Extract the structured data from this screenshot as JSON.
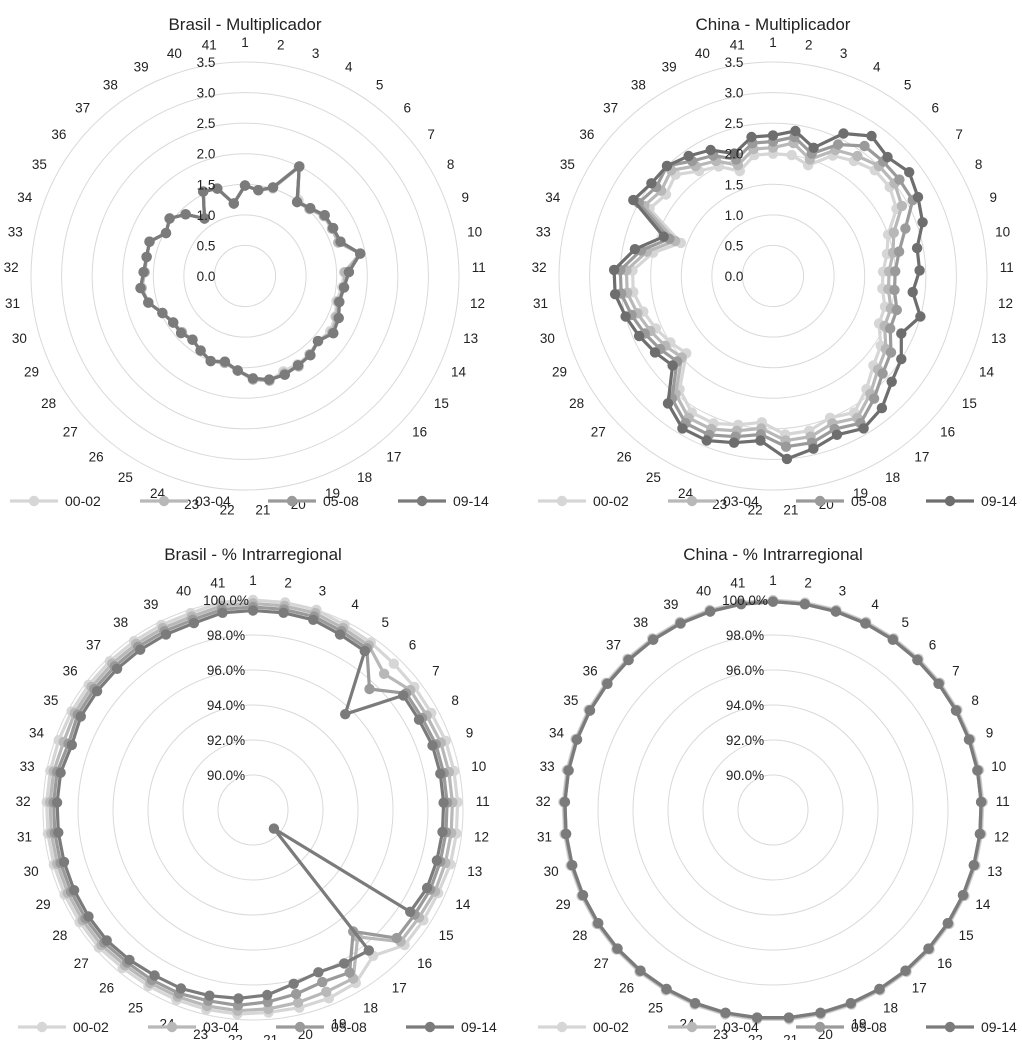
{
  "chart_data": [
    {
      "type": "radar",
      "title": "Brasil - Multiplicador",
      "categories": [
        "1",
        "2",
        "3",
        "4",
        "5",
        "6",
        "7",
        "8",
        "9",
        "10",
        "11",
        "12",
        "13",
        "14",
        "15",
        "16",
        "17",
        "18",
        "19",
        "20",
        "21",
        "22",
        "23",
        "24",
        "25",
        "26",
        "27",
        "28",
        "29",
        "30",
        "31",
        "32",
        "33",
        "34",
        "35",
        "36",
        "37",
        "38",
        "39",
        "40",
        "41"
      ],
      "ticks": [
        "0.0",
        "0.5",
        "1.0",
        "1.5",
        "2.0",
        "2.5",
        "3.0",
        "3.5"
      ],
      "rmin": 0,
      "rmax": 3.5,
      "rings": 7,
      "series": [
        {
          "name": "00-02",
          "color": "#d6d6d6",
          "values": [
            1.48,
            1.42,
            1.5,
            1.98,
            1.52,
            1.52,
            1.62,
            1.62,
            1.65,
            1.92,
            1.62,
            1.6,
            1.55,
            1.62,
            1.66,
            1.6,
            1.66,
            1.68,
            1.68,
            1.76,
            1.7,
            1.55,
            1.46,
            1.5,
            1.42,
            1.35,
            1.38,
            1.4,
            1.48,
            1.64,
            1.7,
            1.64,
            1.64,
            1.66,
            1.47,
            1.55,
            1.4,
            1.15,
            1.54,
            1.5,
            1.2
          ]
        },
        {
          "name": "03-04",
          "color": "#b8b8b8",
          "values": [
            1.48,
            1.42,
            1.52,
            2.0,
            1.48,
            1.52,
            1.62,
            1.62,
            1.62,
            1.92,
            1.64,
            1.63,
            1.58,
            1.64,
            1.7,
            1.6,
            1.66,
            1.72,
            1.72,
            1.76,
            1.7,
            1.55,
            1.46,
            1.5,
            1.42,
            1.35,
            1.38,
            1.4,
            1.48,
            1.64,
            1.7,
            1.64,
            1.64,
            1.66,
            1.47,
            1.55,
            1.4,
            1.15,
            1.54,
            1.5,
            1.2
          ]
        },
        {
          "name": "05-08",
          "color": "#9a9a9a",
          "values": [
            1.48,
            1.42,
            1.52,
            2.0,
            1.48,
            1.54,
            1.64,
            1.64,
            1.66,
            1.92,
            1.7,
            1.63,
            1.6,
            1.68,
            1.72,
            1.6,
            1.68,
            1.7,
            1.74,
            1.74,
            1.68,
            1.55,
            1.44,
            1.5,
            1.42,
            1.35,
            1.4,
            1.4,
            1.48,
            1.64,
            1.72,
            1.66,
            1.64,
            1.66,
            1.47,
            1.55,
            1.4,
            1.15,
            1.54,
            1.5,
            1.2
          ]
        },
        {
          "name": "09-14",
          "color": "#7b7b7b",
          "values": [
            1.48,
            1.42,
            1.52,
            2.0,
            1.48,
            1.54,
            1.64,
            1.64,
            1.66,
            1.92,
            1.7,
            1.63,
            1.6,
            1.68,
            1.72,
            1.6,
            1.68,
            1.7,
            1.74,
            1.74,
            1.68,
            1.55,
            1.44,
            1.5,
            1.42,
            1.35,
            1.4,
            1.4,
            1.48,
            1.64,
            1.72,
            1.66,
            1.64,
            1.66,
            1.47,
            1.55,
            1.4,
            1.15,
            1.54,
            1.5,
            1.2
          ]
        }
      ]
    },
    {
      "type": "radar",
      "title": "China - Multiplicador",
      "categories": [
        "1",
        "2",
        "3",
        "4",
        "5",
        "6",
        "7",
        "8",
        "9",
        "10",
        "11",
        "12",
        "13",
        "14",
        "15",
        "16",
        "17",
        "18",
        "19",
        "20",
        "21",
        "22",
        "23",
        "24",
        "25",
        "26",
        "27",
        "28",
        "29",
        "30",
        "31",
        "32",
        "33",
        "34",
        "35",
        "36",
        "37",
        "38",
        "39",
        "40",
        "41"
      ],
      "ticks": [
        "0.0",
        "0.5",
        "1.0",
        "1.5",
        "2.0",
        "2.5",
        "3.0",
        "3.5"
      ],
      "rmin": 0,
      "rmax": 3.5,
      "rings": 7,
      "series": [
        {
          "name": "00-02",
          "color": "#d6d6d6",
          "values": [
            2.0,
            2.0,
            1.9,
            2.2,
            2.3,
            2.4,
            2.4,
            2.3,
            2.0,
            1.9,
            1.8,
            1.8,
            1.9,
            1.9,
            2.1,
            2.2,
            2.4,
            2.6,
            2.5,
            2.6,
            2.6,
            2.4,
            2.5,
            2.6,
            2.6,
            2.4,
            1.9,
            2.0,
            2.1,
            2.2,
            2.3,
            2.3,
            2.0,
            1.6,
            2.3,
            2.2,
            2.3,
            2.1,
            2.0,
            1.8,
            2.0
          ]
        },
        {
          "name": "03-04",
          "color": "#b8b8b8",
          "values": [
            2.1,
            2.2,
            2.0,
            2.3,
            2.4,
            2.5,
            2.5,
            2.4,
            2.1,
            2.0,
            1.9,
            1.9,
            2.0,
            2.0,
            2.2,
            2.3,
            2.5,
            2.7,
            2.6,
            2.7,
            2.7,
            2.5,
            2.6,
            2.7,
            2.7,
            2.5,
            2.0,
            2.1,
            2.2,
            2.3,
            2.4,
            2.4,
            2.1,
            1.7,
            2.4,
            2.3,
            2.4,
            2.2,
            2.1,
            1.9,
            2.1
          ]
        },
        {
          "name": "05-08",
          "color": "#9a9a9a",
          "values": [
            2.2,
            2.3,
            2.1,
            2.4,
            2.6,
            2.6,
            2.6,
            2.6,
            2.3,
            2.1,
            2.0,
            2.0,
            2.1,
            2.1,
            2.3,
            2.4,
            2.6,
            2.8,
            2.7,
            2.8,
            2.8,
            2.6,
            2.7,
            2.8,
            2.8,
            2.6,
            2.1,
            2.2,
            2.3,
            2.4,
            2.5,
            2.5,
            2.2,
            1.8,
            2.5,
            2.4,
            2.5,
            2.3,
            2.2,
            2.0,
            2.2
          ]
        },
        {
          "name": "09-14",
          "color": "#6e6e6e",
          "values": [
            2.3,
            2.4,
            2.2,
            2.6,
            2.8,
            2.7,
            2.8,
            2.7,
            2.6,
            2.4,
            2.4,
            2.3,
            2.5,
            2.3,
            2.5,
            2.6,
            2.8,
            2.9,
            2.8,
            2.9,
            3.0,
            2.7,
            2.8,
            2.9,
            2.9,
            2.7,
            2.2,
            2.3,
            2.4,
            2.5,
            2.6,
            2.6,
            2.3,
            1.9,
            2.6,
            2.5,
            2.5,
            2.4,
            2.3,
            2.1,
            2.3
          ]
        }
      ]
    },
    {
      "type": "radar",
      "title": "Brasil - % Intrarregional",
      "categories": [
        "1",
        "2",
        "3",
        "4",
        "5",
        "6",
        "7",
        "8",
        "9",
        "10",
        "11",
        "12",
        "13",
        "14",
        "15",
        "16",
        "17",
        "18",
        "19",
        "20",
        "21",
        "22",
        "23",
        "24",
        "25",
        "26",
        "27",
        "28",
        "29",
        "30",
        "31",
        "32",
        "33",
        "34",
        "35",
        "36",
        "37",
        "38",
        "39",
        "40",
        "41"
      ],
      "ticks": [
        "90.0%",
        "92.0%",
        "94.0%",
        "96.0%",
        "98.0%",
        "100.0%"
      ],
      "rmin": 88,
      "rmax": 100,
      "rings": 6,
      "series": [
        {
          "name": "00-02",
          "color": "#d6d6d6",
          "values": [
            100.0,
            100.0,
            100.0,
            99.8,
            99.7,
            99.6,
            99.6,
            99.6,
            99.7,
            99.7,
            99.7,
            99.7,
            99.7,
            99.6,
            99.6,
            99.6,
            98.8,
            99.5,
            99.6,
            99.6,
            99.6,
            99.7,
            99.7,
            99.7,
            99.7,
            99.7,
            99.8,
            99.8,
            99.8,
            99.8,
            99.8,
            99.8,
            99.8,
            99.8,
            99.8,
            99.8,
            99.8,
            99.8,
            99.8,
            99.8,
            100.0
          ]
        },
        {
          "name": "03-04",
          "color": "#b8b8b8",
          "values": [
            99.8,
            99.8,
            99.8,
            99.6,
            99.5,
            98.8,
            99.3,
            99.3,
            99.4,
            99.4,
            99.4,
            99.4,
            99.4,
            99.4,
            99.3,
            99.3,
            97.4,
            99.2,
            99.2,
            99.3,
            99.4,
            99.5,
            99.5,
            99.5,
            99.5,
            99.5,
            99.6,
            99.6,
            99.6,
            99.6,
            99.6,
            99.6,
            99.6,
            99.5,
            99.6,
            99.6,
            99.6,
            99.6,
            99.6,
            99.6,
            99.8
          ]
        },
        {
          "name": "05-08",
          "color": "#9a9a9a",
          "values": [
            99.6,
            99.6,
            99.6,
            99.4,
            99.3,
            97.6,
            99.0,
            99.0,
            99.1,
            99.1,
            99.1,
            99.1,
            99.1,
            99.1,
            99.0,
            99.0,
            97.0,
            98.8,
            98.6,
            98.8,
            99.0,
            99.2,
            99.2,
            99.3,
            99.3,
            99.3,
            99.4,
            99.4,
            99.4,
            99.4,
            99.4,
            99.4,
            99.4,
            99.2,
            99.4,
            99.4,
            99.4,
            99.4,
            99.4,
            99.4,
            99.6
          ]
        },
        {
          "name": "09-14",
          "color": "#7b7b7b",
          "values": [
            99.4,
            99.4,
            99.4,
            99.2,
            99.1,
            95.6,
            98.8,
            98.8,
            98.9,
            98.9,
            98.9,
            98.9,
            98.9,
            98.9,
            98.7,
            89.6,
            98.4,
            98.2,
            98.0,
            98.2,
            98.6,
            98.8,
            98.9,
            99.0,
            99.0,
            99.1,
            99.2,
            99.2,
            99.2,
            99.2,
            99.2,
            99.2,
            99.2,
            99.0,
            99.2,
            99.2,
            99.2,
            99.2,
            99.2,
            99.2,
            99.4
          ]
        }
      ]
    },
    {
      "type": "radar",
      "title": "China - % Intrarregional",
      "categories": [
        "1",
        "2",
        "3",
        "4",
        "5",
        "6",
        "7",
        "8",
        "9",
        "10",
        "11",
        "12",
        "13",
        "14",
        "15",
        "16",
        "17",
        "18",
        "19",
        "20",
        "21",
        "22",
        "23",
        "24",
        "25",
        "26",
        "27",
        "28",
        "29",
        "30",
        "31",
        "32",
        "33",
        "34",
        "35",
        "36",
        "37",
        "38",
        "39",
        "40",
        "41"
      ],
      "ticks": [
        "90.0%",
        "92.0%",
        "94.0%",
        "96.0%",
        "98.0%",
        "100.0%"
      ],
      "rmin": 88,
      "rmax": 100,
      "rings": 6,
      "series": [
        {
          "name": "00-02",
          "color": "#d6d6d6",
          "values": [
            100.0,
            100.0,
            100.0,
            100.0,
            100.0,
            100.0,
            100.0,
            100.0,
            100.0,
            100.0,
            100.0,
            100.0,
            100.0,
            100.0,
            100.0,
            100.0,
            100.0,
            100.0,
            100.0,
            100.0,
            100.0,
            100.0,
            100.0,
            100.0,
            100.0,
            100.0,
            100.0,
            100.0,
            100.0,
            100.0,
            100.0,
            100.0,
            100.0,
            100.0,
            100.0,
            100.0,
            100.0,
            100.0,
            100.0,
            100.0,
            100.0
          ]
        },
        {
          "name": "03-04",
          "color": "#b8b8b8",
          "values": [
            99.95,
            99.95,
            99.95,
            99.95,
            99.95,
            99.95,
            99.95,
            99.95,
            99.95,
            99.95,
            99.95,
            99.95,
            99.95,
            99.95,
            99.95,
            99.95,
            99.95,
            99.95,
            99.95,
            99.95,
            99.95,
            99.95,
            99.95,
            99.95,
            99.95,
            99.95,
            99.95,
            99.95,
            99.95,
            99.95,
            99.95,
            99.95,
            99.95,
            99.95,
            99.95,
            99.95,
            99.95,
            99.95,
            99.95,
            99.95,
            99.95
          ]
        },
        {
          "name": "05-08",
          "color": "#9a9a9a",
          "values": [
            99.9,
            99.9,
            99.9,
            99.9,
            99.9,
            99.9,
            99.9,
            99.9,
            99.9,
            99.9,
            99.9,
            99.9,
            99.9,
            99.9,
            99.9,
            99.9,
            99.9,
            99.9,
            99.9,
            99.9,
            99.9,
            99.9,
            99.9,
            99.9,
            99.9,
            99.9,
            99.9,
            99.9,
            99.9,
            99.9,
            99.9,
            99.9,
            99.9,
            99.9,
            99.9,
            99.9,
            99.9,
            99.9,
            99.9,
            99.9,
            99.9
          ]
        },
        {
          "name": "09-14",
          "color": "#7b7b7b",
          "values": [
            99.9,
            99.9,
            99.9,
            99.9,
            99.9,
            99.9,
            99.9,
            99.9,
            99.9,
            99.9,
            99.9,
            99.9,
            99.9,
            99.9,
            99.9,
            99.9,
            99.9,
            99.9,
            99.9,
            99.9,
            99.9,
            99.9,
            99.9,
            99.9,
            99.9,
            99.9,
            99.9,
            99.9,
            99.9,
            99.9,
            99.9,
            99.9,
            99.9,
            99.9,
            99.9,
            99.9,
            99.9,
            99.9,
            99.9,
            99.9,
            99.9
          ]
        }
      ]
    }
  ]
}
